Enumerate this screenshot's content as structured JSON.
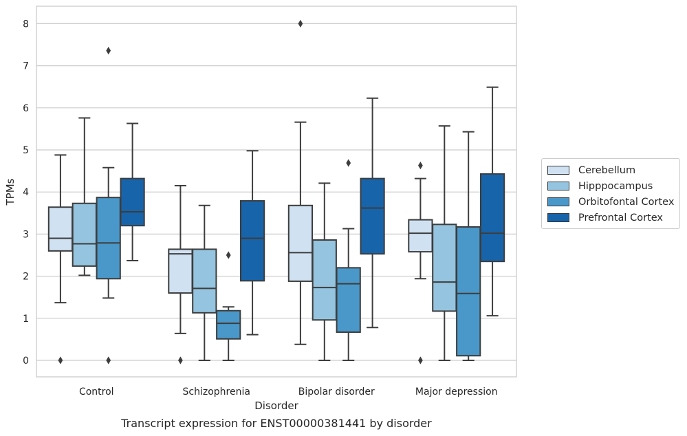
{
  "chart_data": {
    "type": "box",
    "title": "",
    "caption": "Transcript expression for ENST00000381441 by disorder",
    "xlabel": "Disorder",
    "ylabel": "TPMs",
    "ylim": [
      -0.4,
      8.4
    ],
    "yticks": [
      "0",
      "1",
      "2",
      "3",
      "4",
      "5",
      "6",
      "7",
      "8"
    ],
    "grid": "horizontal",
    "legend_position": "center-right",
    "categories": [
      "Control",
      "Schizophrenia",
      "Bipolar disorder",
      "Major depression"
    ],
    "series": [
      {
        "name": "Cerebellum",
        "color": "#d0e1f2",
        "boxes": [
          {
            "whislo": 1.37,
            "q1": 2.6,
            "med": 2.9,
            "q3": 3.64,
            "whishi": 4.88,
            "fliers": [
              0.0
            ]
          },
          {
            "whislo": 0.64,
            "q1": 1.6,
            "med": 2.53,
            "q3": 2.64,
            "whishi": 4.15,
            "fliers": [
              0.0
            ]
          },
          {
            "whislo": 0.38,
            "q1": 1.88,
            "med": 2.56,
            "q3": 3.68,
            "whishi": 5.66,
            "fliers": [
              8.0
            ]
          },
          {
            "whislo": 1.94,
            "q1": 2.58,
            "med": 3.02,
            "q3": 3.34,
            "whishi": 4.32,
            "fliers": [
              4.63,
              0.0
            ]
          }
        ]
      },
      {
        "name": "Hipppocampus",
        "color": "#94c4df",
        "boxes": [
          {
            "whislo": 2.02,
            "q1": 2.24,
            "med": 2.77,
            "q3": 3.73,
            "whishi": 5.76,
            "fliers": []
          },
          {
            "whislo": 0.0,
            "q1": 1.13,
            "med": 1.71,
            "q3": 2.64,
            "whishi": 3.68,
            "fliers": []
          },
          {
            "whislo": 0.0,
            "q1": 0.96,
            "med": 1.73,
            "q3": 2.86,
            "whishi": 4.21,
            "fliers": []
          },
          {
            "whislo": 0.0,
            "q1": 1.17,
            "med": 1.86,
            "q3": 3.23,
            "whishi": 5.57,
            "fliers": []
          }
        ]
      },
      {
        "name": "Orbitofontal Cortex",
        "color": "#4a98c9",
        "boxes": [
          {
            "whislo": 1.48,
            "q1": 1.94,
            "med": 2.79,
            "q3": 3.87,
            "whishi": 4.58,
            "fliers": [
              7.36,
              0.0
            ]
          },
          {
            "whislo": 0.0,
            "q1": 0.51,
            "med": 0.88,
            "q3": 1.18,
            "whishi": 1.27,
            "fliers": [
              2.5
            ]
          },
          {
            "whislo": 0.0,
            "q1": 0.67,
            "med": 1.82,
            "q3": 2.2,
            "whishi": 3.13,
            "fliers": [
              4.69
            ]
          },
          {
            "whislo": 0.0,
            "q1": 0.11,
            "med": 1.59,
            "q3": 3.17,
            "whishi": 5.43,
            "fliers": []
          }
        ]
      },
      {
        "name": "Prefrontal Cortex",
        "color": "#1764ab",
        "boxes": [
          {
            "whislo": 2.37,
            "q1": 3.2,
            "med": 3.53,
            "q3": 4.32,
            "whishi": 5.63,
            "fliers": []
          },
          {
            "whislo": 0.61,
            "q1": 1.89,
            "med": 2.9,
            "q3": 3.79,
            "whishi": 4.98,
            "fliers": []
          },
          {
            "whislo": 0.78,
            "q1": 2.53,
            "med": 3.62,
            "q3": 4.32,
            "whishi": 6.23,
            "fliers": []
          },
          {
            "whislo": 1.06,
            "q1": 2.35,
            "med": 3.02,
            "q3": 4.43,
            "whishi": 6.49,
            "fliers": []
          }
        ]
      }
    ]
  }
}
